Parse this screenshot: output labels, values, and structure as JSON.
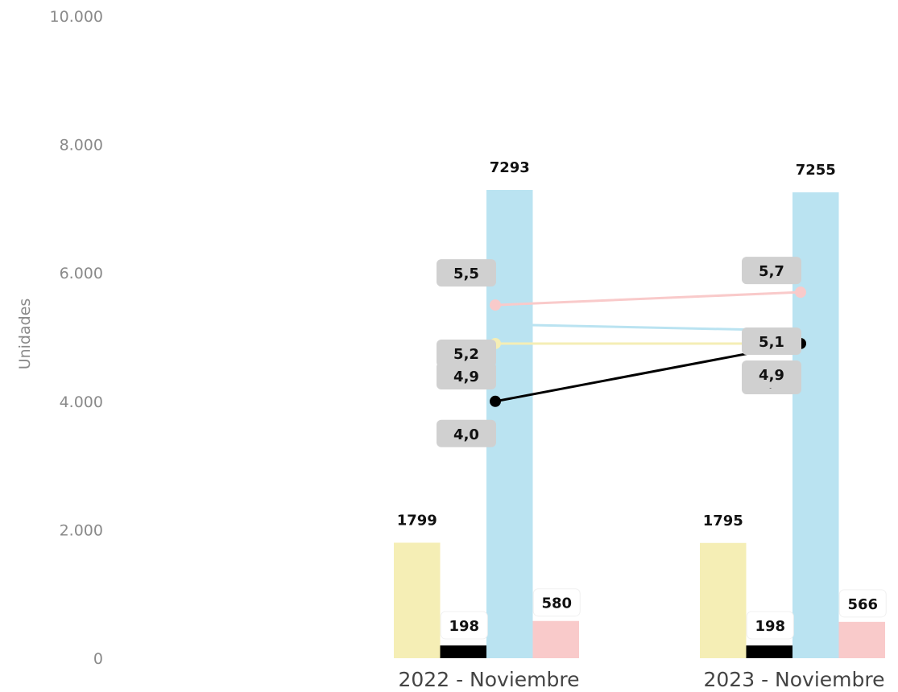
{
  "chart_data": {
    "type": "bar",
    "ylabel": "Unidades",
    "ylim": [
      0,
      10000
    ],
    "yticks": [
      "0",
      "2.000",
      "4.000",
      "6.000",
      "8.000",
      "10.000"
    ],
    "grid": false,
    "categories": [
      "2022 - Noviembre",
      "2023 - Noviembre"
    ],
    "bar_series": [
      {
        "values": [
          1799,
          1795
        ],
        "labels": [
          "1799",
          "1795"
        ],
        "color": "#f5eeb5"
      },
      {
        "values": [
          198,
          198
        ],
        "labels": [
          "198",
          "198"
        ],
        "color": "#000000"
      },
      {
        "values": [
          7293,
          7255
        ],
        "labels": [
          "7293",
          "7255"
        ],
        "color": "#bae3f1"
      },
      {
        "values": [
          580,
          566
        ],
        "labels": [
          "580",
          "566"
        ],
        "color": "#f9caca"
      }
    ],
    "line_series": [
      {
        "values": [
          5.5,
          5.7
        ],
        "labels": [
          "5,5",
          "5,7"
        ],
        "color": "#f9caca"
      },
      {
        "values": [
          5.2,
          5.1
        ],
        "labels": [
          "5,2",
          "5,1"
        ],
        "color": "#bae3f1"
      },
      {
        "values": [
          4.9,
          4.9
        ],
        "labels": [
          "4,9",
          "4,9"
        ],
        "color": "#f5eeb5"
      },
      {
        "values": [
          4.0,
          4.9
        ],
        "labels": [
          "4,0",
          "4,9"
        ],
        "color": "#000000"
      }
    ]
  }
}
